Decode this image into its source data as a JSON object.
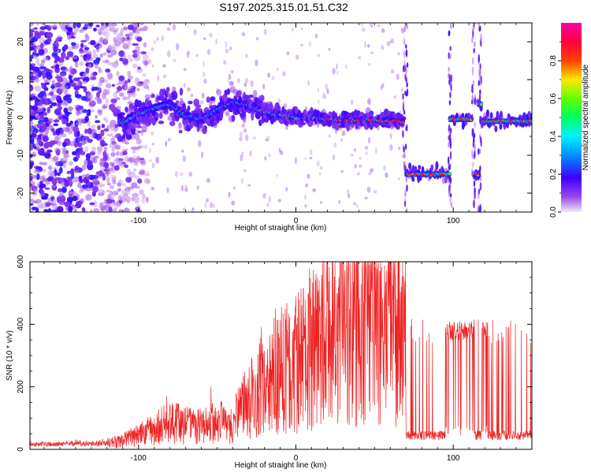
{
  "title": "S197.2025.315.01.51.C32",
  "chart_data": [
    {
      "type": "heatmap",
      "name": "spectrogram",
      "xlabel": "Height of straight line (km)",
      "ylabel": "Frequency (Hz)",
      "xlim": [
        -169,
        150
      ],
      "ylim": [
        -25,
        25
      ],
      "x_ticks": [
        "-100",
        "0",
        "100"
      ],
      "x_tick_values": [
        -100,
        0,
        100
      ],
      "y_ticks": [
        "20",
        "10",
        "0",
        "-10",
        "-20"
      ],
      "y_tick_values": [
        20,
        10,
        0,
        -10,
        -20
      ],
      "colorbar": {
        "label": "Normalized spectral amplitude",
        "range": [
          0,
          1
        ],
        "ticks": [
          "0.0",
          "0.2",
          "0.4",
          "0.6",
          "0.8"
        ],
        "tick_values": [
          0,
          0.2,
          0.4,
          0.6,
          0.8
        ],
        "colormap": [
          "#e8d8f0",
          "#8a2be2",
          "#3d00ff",
          "#0080ff",
          "#00e5ff",
          "#00ff40",
          "#c8ff00",
          "#ffd000",
          "#ff2000",
          "#ff00a0"
        ]
      },
      "ridge_track": {
        "x": [
          -110,
          -100,
          -90,
          -80,
          -70,
          -60,
          -50,
          -40,
          -30,
          -20,
          -10,
          0,
          10,
          20,
          30,
          40,
          50,
          60,
          68
        ],
        "y": [
          -1.5,
          1,
          2.5,
          3.5,
          0.5,
          -0.5,
          2,
          4,
          3,
          1.5,
          0.5,
          0,
          0,
          -0.5,
          -0.8,
          -0.8,
          -0.8,
          -1,
          -1
        ]
      },
      "segments": [
        {
          "x": [
            70,
            98
          ],
          "y": -15
        },
        {
          "x": [
            98,
            112
          ],
          "y": -0.5
        },
        {
          "x": [
            113,
            116
          ],
          "y": -15
        },
        {
          "x": [
            116,
            118
          ],
          "y": 3.5
        },
        {
          "x": [
            118,
            150
          ],
          "y": -1
        }
      ]
    },
    {
      "type": "line",
      "name": "snr",
      "xlabel": "Height of straight line (km)",
      "ylabel": "SNR (10 * v/v)",
      "xlim": [
        -169,
        150
      ],
      "ylim": [
        0,
        600
      ],
      "x_ticks": [
        "-100",
        "0",
        "100"
      ],
      "x_tick_values": [
        -100,
        0,
        100
      ],
      "y_ticks": [
        "0",
        "200",
        "400",
        "600"
      ],
      "y_tick_values": [
        0,
        200,
        400,
        600
      ],
      "color": "#ee2222",
      "envelope": {
        "x": [
          -169,
          -120,
          -110,
          -100,
          -90,
          -80,
          -70,
          -60,
          -50,
          -40,
          -35,
          -25,
          -20,
          -10,
          0,
          10,
          20,
          30,
          40,
          50,
          60,
          70
        ],
        "y": [
          15,
          18,
          25,
          45,
          60,
          80,
          70,
          65,
          80,
          70,
          120,
          170,
          200,
          230,
          260,
          300,
          330,
          350,
          360,
          355,
          370,
          360
        ]
      },
      "spikes": [
        {
          "x": -82,
          "y": 170
        },
        {
          "x": -54,
          "y": 200
        },
        {
          "x": -22,
          "y": 390
        },
        {
          "x": -13,
          "y": 450
        },
        {
          "x": 0,
          "y": 490
        },
        {
          "x": 8,
          "y": 500
        },
        {
          "x": 15,
          "y": 470
        },
        {
          "x": 26,
          "y": 500
        },
        {
          "x": 35,
          "y": 530
        },
        {
          "x": 46,
          "y": 520
        },
        {
          "x": 52,
          "y": 560
        },
        {
          "x": 60,
          "y": 600
        },
        {
          "x": 67,
          "y": 520
        }
      ],
      "after_x": 70,
      "high_level": 380,
      "low_level": 45,
      "low_bands": [
        [
          70,
          95
        ],
        [
          113,
          118
        ],
        [
          122,
          150
        ]
      ]
    }
  ]
}
